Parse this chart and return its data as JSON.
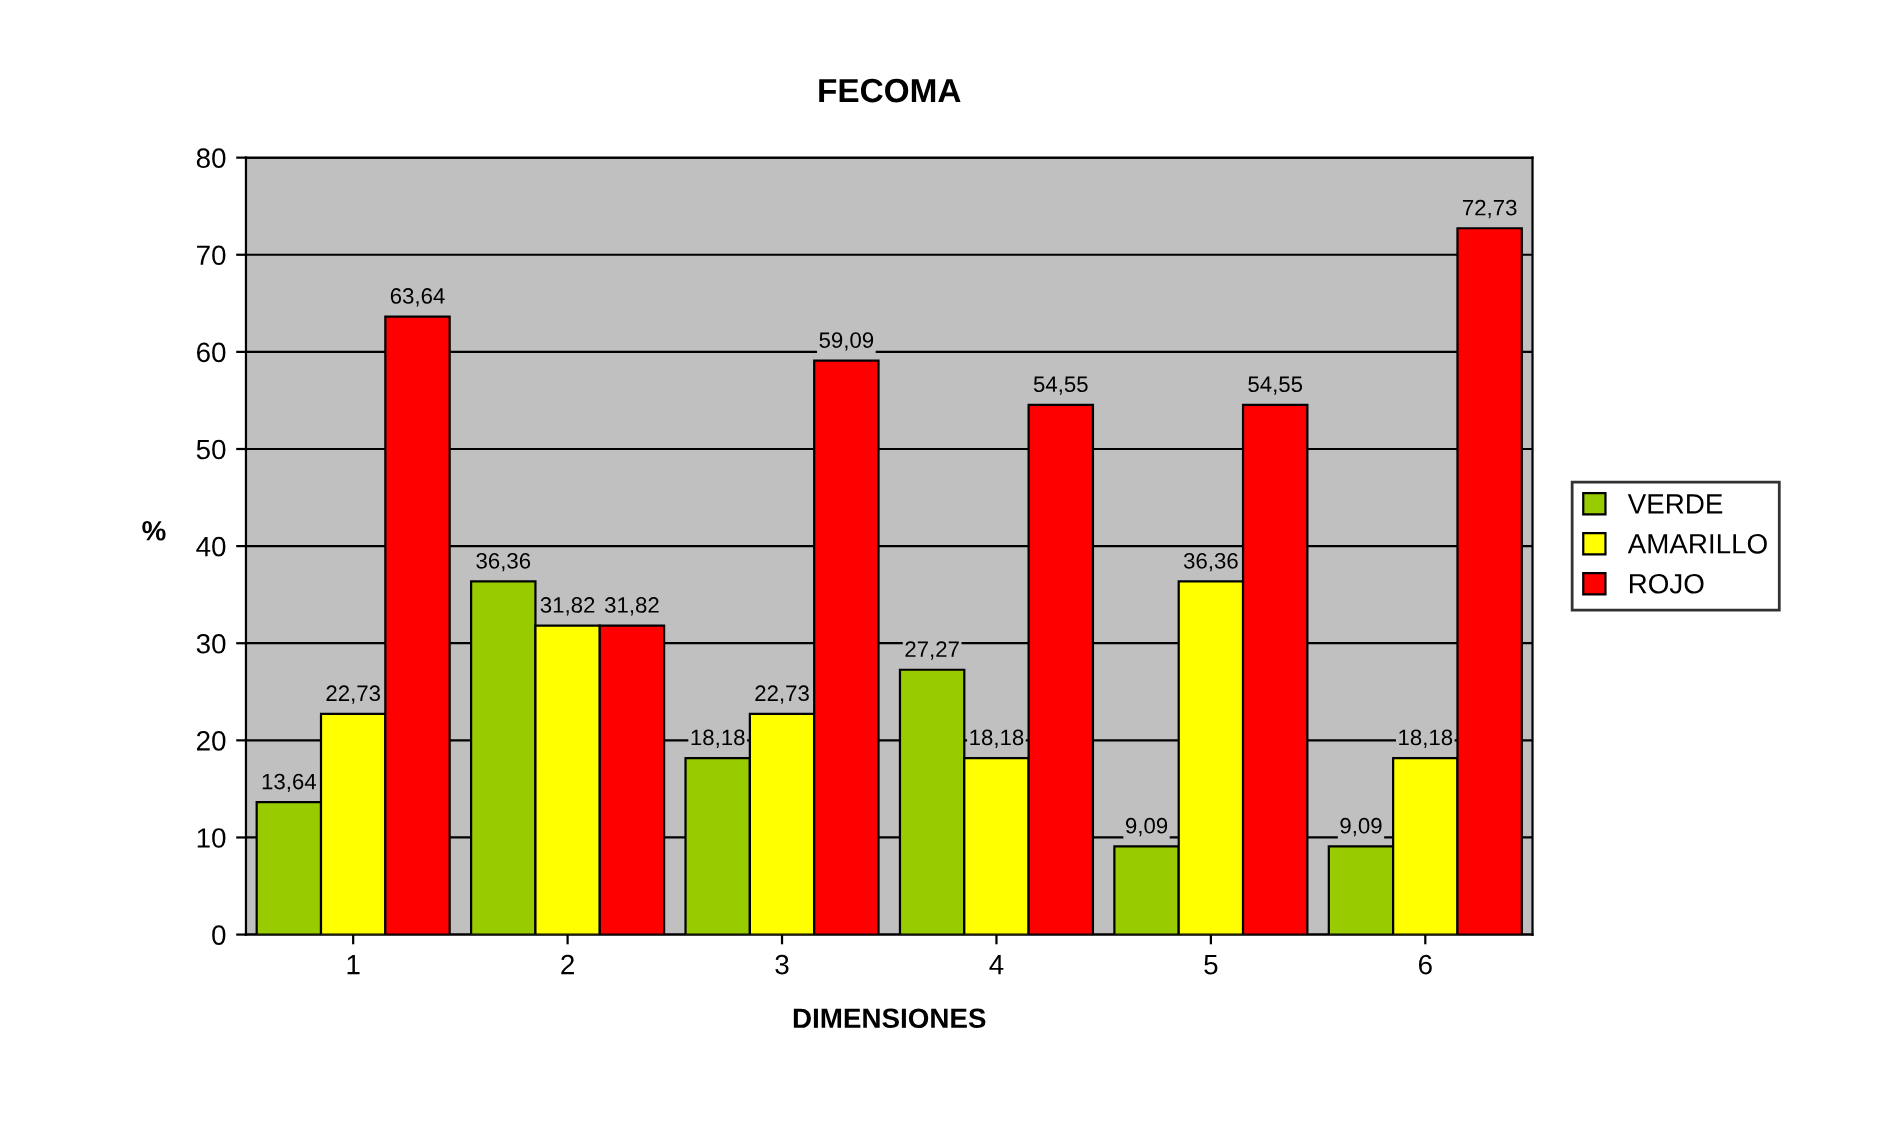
{
  "chart_data": {
    "type": "bar",
    "title": "FECOMA",
    "xlabel": "DIMENSIONES",
    "ylabel": "%",
    "categories": [
      "1",
      "2",
      "3",
      "4",
      "5",
      "6"
    ],
    "series": [
      {
        "name": "VERDE",
        "color": "#99cc00",
        "values": [
          13.64,
          36.36,
          18.18,
          27.27,
          9.09,
          9.09
        ],
        "value_labels": [
          "13,64",
          "36,36",
          "18,18",
          "27,27",
          "9,09",
          "9,09"
        ]
      },
      {
        "name": "AMARILLO",
        "color": "#ffff00",
        "values": [
          22.73,
          31.82,
          22.73,
          18.18,
          36.36,
          18.18
        ],
        "value_labels": [
          "22,73",
          "31,82",
          "22,73",
          "18,18",
          "36,36",
          "18,18"
        ]
      },
      {
        "name": "ROJO",
        "color": "#ff0000",
        "values": [
          63.64,
          31.82,
          59.09,
          54.55,
          54.55,
          72.73
        ],
        "value_labels": [
          "63,64",
          "31,82",
          "59,09",
          "54,55",
          "54,55",
          "72,73"
        ]
      }
    ],
    "ylim": [
      0,
      80
    ],
    "yticks": [
      0,
      10,
      20,
      30,
      40,
      50,
      60,
      70,
      80
    ],
    "grid": "y",
    "legend": "right"
  }
}
